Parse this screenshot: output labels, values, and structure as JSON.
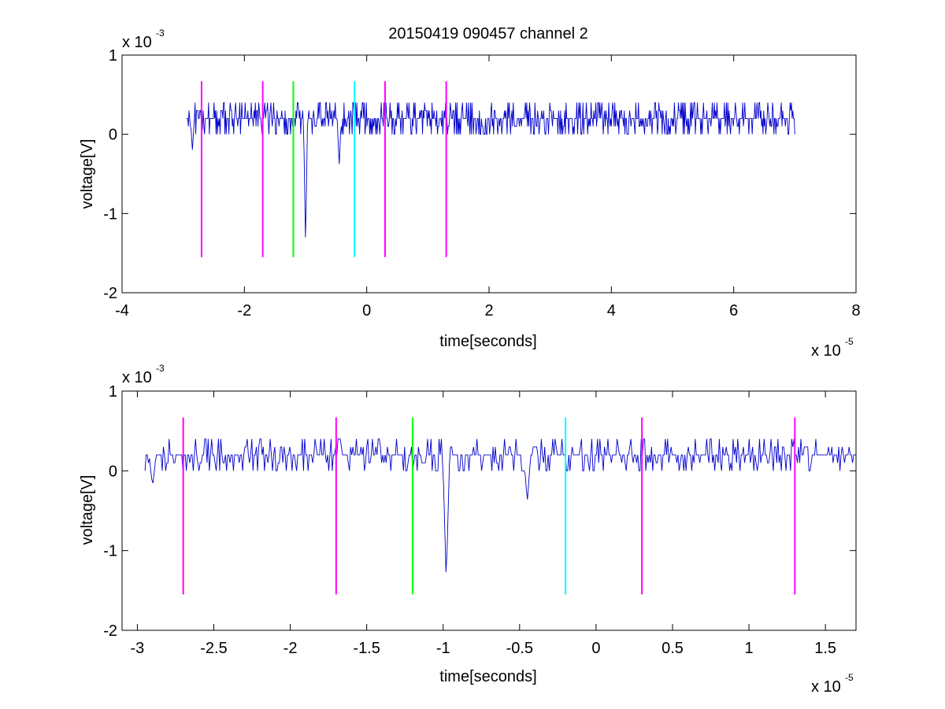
{
  "figure_title": "20150419 090457 channel 2",
  "colors": {
    "signal": "#0000cc",
    "magenta": "#ff00ff",
    "green": "#00ff00",
    "cyan": "#00ffff",
    "axis": "#000000"
  },
  "chart_data": [
    {
      "type": "line",
      "title": "20150419 090457 channel 2",
      "xlabel": "time[seconds]",
      "ylabel": "voltage[V]",
      "x_exponent_label": "x 10",
      "x_exponent": "-5",
      "y_exponent_label": "x 10",
      "y_exponent": "-3",
      "xlim": [
        -4,
        8
      ],
      "ylim": [
        -2,
        1
      ],
      "xticks": [
        -4,
        -2,
        0,
        2,
        4,
        6,
        8
      ],
      "xtick_labels": [
        "-4",
        "-2",
        "0",
        "2",
        "4",
        "6",
        "8"
      ],
      "yticks": [
        -2,
        -1,
        0,
        1
      ],
      "ytick_labels": [
        "-2",
        "-1",
        "0",
        "1"
      ],
      "grid": false,
      "series": [
        {
          "color": "blue",
          "x_range": [
            -2.95,
            7.0
          ],
          "baseline": 0.2,
          "noise_levels": [
            0.0,
            0.1,
            0.2,
            0.3,
            0.4
          ],
          "events": [
            {
              "x": -1.0,
              "y": -1.4
            },
            {
              "x": -0.45,
              "y": -0.4
            },
            {
              "x": -2.85,
              "y": -0.2
            }
          ]
        }
      ],
      "markers": [
        {
          "x": -2.7,
          "y_range": [
            -1.55,
            0.67
          ],
          "color": "magenta"
        },
        {
          "x": -1.7,
          "y_range": [
            -1.55,
            0.67
          ],
          "color": "magenta"
        },
        {
          "x": -1.2,
          "y_range": [
            -1.55,
            0.67
          ],
          "color": "green"
        },
        {
          "x": -0.2,
          "y_range": [
            -1.55,
            0.67
          ],
          "color": "cyan"
        },
        {
          "x": 0.3,
          "y_range": [
            -1.55,
            0.67
          ],
          "color": "magenta"
        },
        {
          "x": 1.3,
          "y_range": [
            -1.55,
            0.67
          ],
          "color": "magenta"
        }
      ]
    },
    {
      "type": "line",
      "title": "",
      "xlabel": "time[seconds]",
      "ylabel": "voltage[V]",
      "x_exponent_label": "x 10",
      "x_exponent": "-5",
      "y_exponent_label": "x 10",
      "y_exponent": "-3",
      "xlim": [
        -3.1,
        1.7
      ],
      "ylim": [
        -2,
        1
      ],
      "xticks": [
        -3,
        -2.5,
        -2,
        -1.5,
        -1,
        -0.5,
        0,
        0.5,
        1,
        1.5
      ],
      "xtick_labels": [
        "-3",
        "-2.5",
        "-2",
        "-1.5",
        "-1",
        "-0.5",
        "0",
        "0.5",
        "1",
        "1.5"
      ],
      "yticks": [
        -2,
        -1,
        0,
        1
      ],
      "ytick_labels": [
        "-2",
        "-1",
        "0",
        "1"
      ],
      "grid": false,
      "series": [
        {
          "color": "blue",
          "x_range": [
            -2.95,
            1.7
          ],
          "baseline": 0.2,
          "noise_levels": [
            0.0,
            0.1,
            0.2,
            0.3,
            0.4
          ],
          "events": [
            {
              "x": -0.98,
              "y": -1.4
            },
            {
              "x": -0.45,
              "y": -0.4
            },
            {
              "x": -2.9,
              "y": -0.2
            }
          ]
        }
      ],
      "markers": [
        {
          "x": -2.7,
          "y_range": [
            -1.55,
            0.67
          ],
          "color": "magenta"
        },
        {
          "x": -1.7,
          "y_range": [
            -1.55,
            0.67
          ],
          "color": "magenta"
        },
        {
          "x": -1.2,
          "y_range": [
            -1.55,
            0.67
          ],
          "color": "green"
        },
        {
          "x": -0.2,
          "y_range": [
            -1.55,
            0.67
          ],
          "color": "cyan"
        },
        {
          "x": 0.3,
          "y_range": [
            -1.55,
            0.67
          ],
          "color": "magenta"
        },
        {
          "x": 1.3,
          "y_range": [
            -1.55,
            0.67
          ],
          "color": "magenta"
        }
      ]
    }
  ]
}
